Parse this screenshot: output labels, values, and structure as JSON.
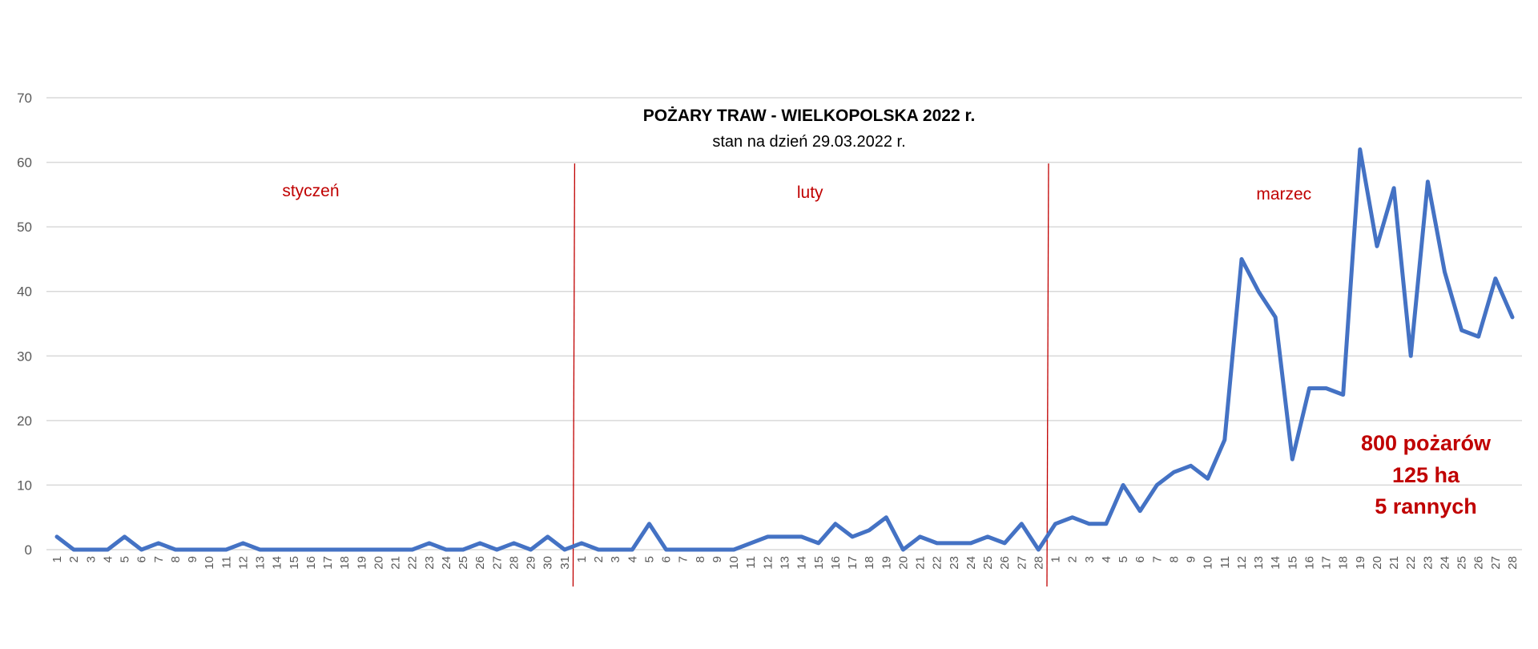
{
  "chart_data": {
    "type": "line",
    "title": "POŻARY TRAW - WIELKOPOLSKA 2022 r.",
    "subtitle": "stan na dzień 29.03.2022 r.",
    "xlabel": "",
    "ylabel": "",
    "ylim": [
      0,
      70
    ],
    "yticks": [
      0,
      10,
      20,
      30,
      40,
      50,
      60,
      70
    ],
    "grid": true,
    "legend": null,
    "months": [
      {
        "name": "styczeń",
        "days": 31
      },
      {
        "name": "luty",
        "days": 28
      },
      {
        "name": "marzec",
        "days": 28
      }
    ],
    "categories": [
      "1",
      "2",
      "3",
      "4",
      "5",
      "6",
      "7",
      "8",
      "9",
      "10",
      "11",
      "12",
      "13",
      "14",
      "15",
      "16",
      "17",
      "18",
      "19",
      "20",
      "21",
      "22",
      "23",
      "24",
      "25",
      "26",
      "27",
      "28",
      "29",
      "30",
      "31",
      "1",
      "2",
      "3",
      "4",
      "5",
      "6",
      "7",
      "8",
      "9",
      "10",
      "11",
      "12",
      "13",
      "14",
      "15",
      "16",
      "17",
      "18",
      "19",
      "20",
      "21",
      "22",
      "23",
      "24",
      "25",
      "26",
      "27",
      "28",
      "1",
      "2",
      "3",
      "4",
      "5",
      "6",
      "7",
      "8",
      "9",
      "10",
      "11",
      "12",
      "13",
      "14",
      "15",
      "16",
      "17",
      "18",
      "19",
      "20",
      "21",
      "22",
      "23",
      "24",
      "25",
      "26",
      "27",
      "28"
    ],
    "series": [
      {
        "name": "Pożary traw",
        "color": "#4472c4",
        "values": [
          2,
          0,
          0,
          0,
          2,
          0,
          1,
          0,
          0,
          0,
          0,
          1,
          0,
          0,
          0,
          0,
          0,
          0,
          0,
          0,
          0,
          0,
          1,
          0,
          0,
          1,
          0,
          1,
          0,
          2,
          0,
          1,
          0,
          0,
          0,
          4,
          0,
          0,
          0,
          0,
          0,
          1,
          2,
          2,
          2,
          1,
          4,
          2,
          3,
          5,
          0,
          2,
          1,
          1,
          1,
          2,
          1,
          4,
          0,
          4,
          5,
          4,
          4,
          10,
          6,
          10,
          12,
          13,
          11,
          17,
          45,
          40,
          36,
          14,
          25,
          25,
          24,
          62,
          47,
          56,
          30,
          57,
          43,
          34,
          33,
          42,
          36
        ]
      }
    ],
    "annotations": {
      "summary_lines": [
        "800 pożarów",
        "125 ha",
        "5 rannych"
      ],
      "color": "#c00000"
    },
    "separator_color": "#c00000"
  }
}
